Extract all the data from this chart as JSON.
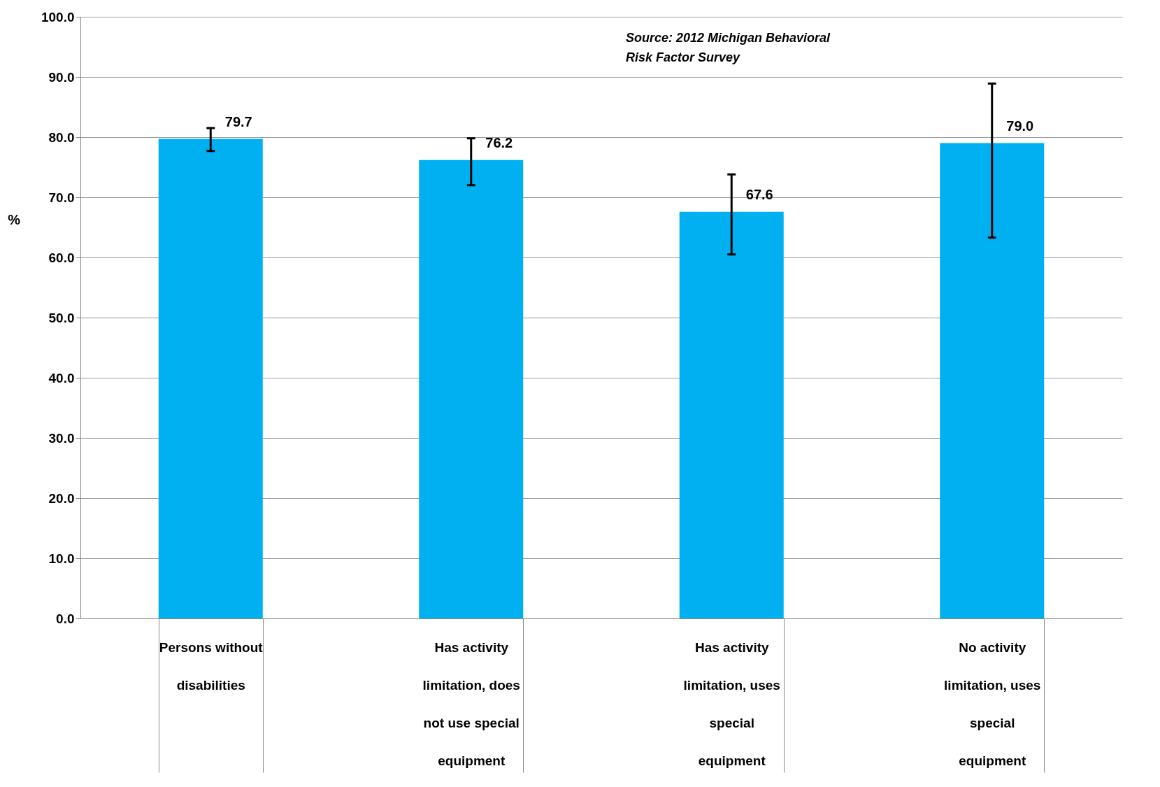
{
  "chart_data": {
    "type": "bar",
    "ylabel": "%",
    "categories": [
      "Persons without disabilities",
      "Has activity limitation, does not use special equipment",
      "Has activity limitation, uses special equipment",
      "No activity limitation, uses special equipment"
    ],
    "values": [
      79.7,
      76.2,
      67.6,
      79.0
    ],
    "color": "#00b0f0",
    "errors": [
      [
        77.7,
        81.5
      ],
      [
        72.0,
        79.8
      ],
      [
        60.5,
        73.8
      ],
      [
        63.3,
        88.9
      ]
    ],
    "value_labels": [
      "79.7",
      "76.2",
      "67.6",
      "79.0"
    ],
    "ylim": [
      0,
      100
    ],
    "yticks": [
      {
        "value": 0,
        "label": "0.0"
      },
      {
        "value": 10,
        "label": "10.0"
      },
      {
        "value": 20,
        "label": "20.0"
      },
      {
        "value": 30,
        "label": "30.0"
      },
      {
        "value": 40,
        "label": "40.0"
      },
      {
        "value": 50,
        "label": "50.0"
      },
      {
        "value": 60,
        "label": "60.0"
      },
      {
        "value": 70,
        "label": "70.0"
      },
      {
        "value": 80,
        "label": "80.0"
      },
      {
        "value": 90,
        "label": "90.0"
      },
      {
        "value": 100,
        "label": "100.0"
      }
    ],
    "grid": "y",
    "annotations": [
      "Source: 2012 Michigan Behavioral Risk Factor Survey"
    ]
  }
}
